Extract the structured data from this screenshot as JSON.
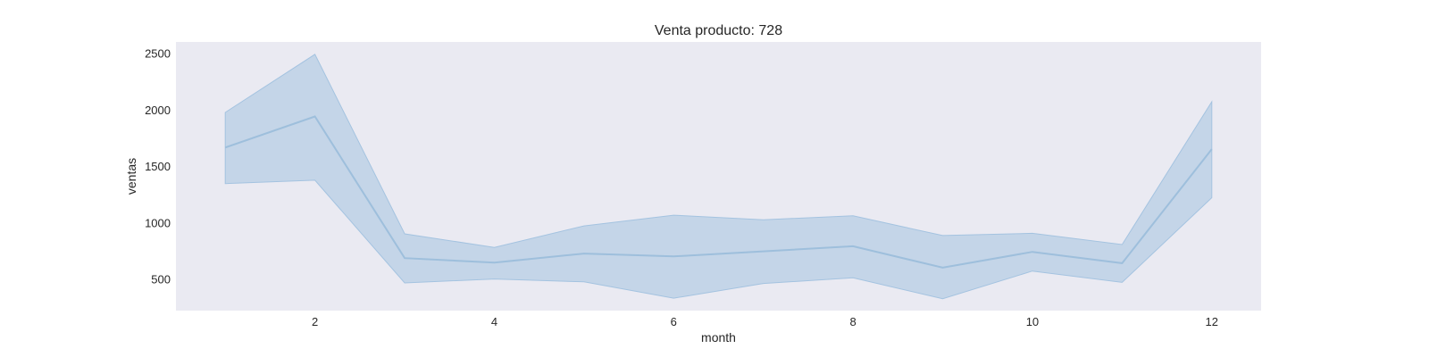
{
  "chart_data": {
    "type": "line",
    "title": "Venta producto: 728",
    "xlabel": "month",
    "ylabel": "ventas",
    "x": [
      1,
      2,
      3,
      4,
      5,
      6,
      7,
      8,
      9,
      10,
      11,
      12
    ],
    "series": [
      {
        "values": [
          1665,
          1940,
          685,
          645,
          725,
          700,
          745,
          790,
          600,
          740,
          640,
          1650
        ],
        "ci_upper": [
          1975,
          2490,
          900,
          780,
          970,
          1065,
          1025,
          1060,
          885,
          905,
          805,
          2070
        ],
        "ci_lower": [
          1345,
          1375,
          465,
          500,
          475,
          330,
          460,
          510,
          325,
          570,
          470,
          1220
        ]
      }
    ],
    "xlim": [
      0.45,
      12.55
    ],
    "ylim": [
      220,
      2600
    ],
    "xticks": [
      2,
      4,
      6,
      8,
      10,
      12
    ],
    "yticks": [
      500,
      1000,
      1500,
      2000,
      2500
    ],
    "grid": false,
    "colors": {
      "background": "#eaeaf2",
      "line": "#9ebfdc",
      "band": "#a4c3e0"
    }
  }
}
